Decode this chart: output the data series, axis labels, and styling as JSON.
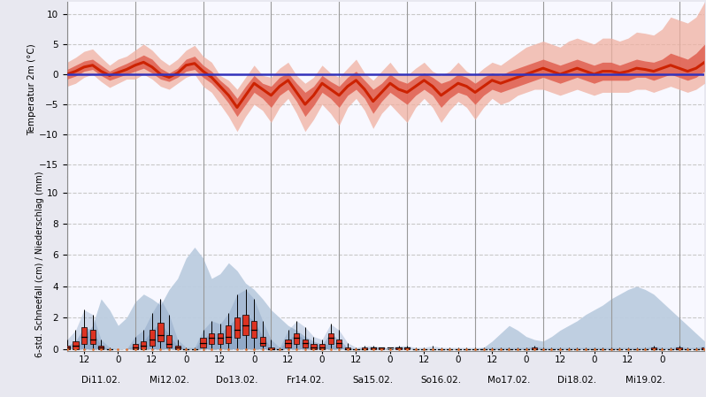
{
  "temp_ylabel": "Temperatur 2m (°C)",
  "precip_ylabel": "6-std. Schneefall (cm) / Niederschlag (mm)",
  "temp_ylim": [
    -17,
    12
  ],
  "temp_yticks": [
    -15,
    -10,
    -5,
    0,
    5,
    10
  ],
  "precip_ylim": [
    -0.15,
    11
  ],
  "precip_yticks": [
    0,
    2,
    4,
    6,
    8,
    10
  ],
  "background_color": "#e8e8f0",
  "plot_bg_color": "#f8f8ff",
  "n_steps": 76,
  "x_day_labels": [
    "Di11.02.",
    "Mi12.02.",
    "Do13.02.",
    "Fr14.02.",
    "Sa15.02.",
    "So16.02.",
    "Mo17.02.",
    "Di18.02.",
    "Mi19.02."
  ],
  "x_day_positions": [
    4,
    12,
    20,
    28,
    36,
    44,
    52,
    60,
    68
  ],
  "x_hour_labels": [
    "12",
    "0",
    "12",
    "0",
    "12",
    "0",
    "12",
    "0",
    "12",
    "0",
    "12",
    "0",
    "12",
    "0",
    "12",
    "0",
    "12",
    "0"
  ],
  "x_hour_positions": [
    2,
    6,
    10,
    14,
    18,
    22,
    26,
    30,
    34,
    38,
    42,
    46,
    50,
    54,
    58,
    62,
    66,
    70
  ],
  "x_day_line_positions": [
    0,
    8,
    16,
    24,
    32,
    40,
    48,
    56,
    64,
    72
  ],
  "temp_median": [
    0.0,
    0.5,
    1.2,
    1.5,
    0.5,
    -0.2,
    0.3,
    0.8,
    1.5,
    2.0,
    1.2,
    0.0,
    -0.5,
    0.2,
    1.5,
    1.8,
    0.5,
    -0.5,
    -2.0,
    -3.5,
    -5.5,
    -3.5,
    -1.5,
    -2.5,
    -3.5,
    -2.0,
    -1.0,
    -3.0,
    -5.0,
    -3.5,
    -1.5,
    -2.5,
    -3.5,
    -2.0,
    -1.0,
    -2.5,
    -4.5,
    -3.0,
    -1.5,
    -2.5,
    -3.0,
    -2.0,
    -1.0,
    -2.0,
    -3.5,
    -2.5,
    -1.5,
    -2.0,
    -3.0,
    -2.0,
    -1.0,
    -1.5,
    -1.0,
    -0.5,
    0.0,
    0.5,
    1.0,
    0.5,
    0.0,
    0.5,
    1.0,
    0.5,
    0.0,
    0.5,
    0.5,
    0.2,
    0.5,
    1.0,
    0.8,
    0.5,
    1.0,
    1.5,
    1.0,
    0.5,
    1.0,
    2.0
  ],
  "temp_q25": [
    -0.8,
    -0.3,
    0.5,
    0.8,
    -0.2,
    -1.0,
    -0.5,
    0.0,
    0.5,
    1.0,
    0.2,
    -0.8,
    -1.2,
    -0.5,
    0.5,
    0.8,
    -0.5,
    -1.5,
    -3.0,
    -4.8,
    -7.0,
    -5.0,
    -3.0,
    -4.0,
    -5.5,
    -3.5,
    -2.5,
    -4.5,
    -7.0,
    -5.2,
    -3.0,
    -4.0,
    -5.5,
    -3.5,
    -2.5,
    -4.0,
    -6.5,
    -4.5,
    -3.0,
    -4.0,
    -5.0,
    -3.5,
    -2.5,
    -3.5,
    -5.5,
    -4.0,
    -3.0,
    -3.5,
    -5.0,
    -3.5,
    -2.5,
    -3.0,
    -2.5,
    -2.0,
    -1.5,
    -1.0,
    -0.5,
    -1.0,
    -1.5,
    -1.0,
    -0.5,
    -1.0,
    -1.5,
    -1.0,
    -1.0,
    -1.0,
    -1.0,
    -0.5,
    -0.5,
    -1.0,
    -0.5,
    0.0,
    -0.5,
    -1.0,
    -0.5,
    0.5
  ],
  "temp_q75": [
    0.8,
    1.5,
    2.2,
    2.5,
    1.5,
    0.5,
    1.2,
    1.8,
    2.5,
    3.2,
    2.5,
    1.0,
    0.2,
    1.0,
    2.5,
    3.0,
    1.5,
    0.5,
    -1.0,
    -2.2,
    -4.0,
    -2.0,
    -0.2,
    -1.5,
    -2.0,
    -0.5,
    0.2,
    -1.5,
    -3.0,
    -2.0,
    -0.2,
    -1.2,
    -2.0,
    -0.5,
    0.5,
    -1.0,
    -2.5,
    -1.5,
    0.0,
    -1.0,
    -1.5,
    -0.5,
    0.2,
    -0.5,
    -1.5,
    -1.0,
    0.0,
    -0.5,
    -1.5,
    -0.5,
    0.2,
    -0.2,
    0.5,
    1.0,
    1.5,
    2.0,
    2.5,
    2.0,
    1.5,
    2.0,
    2.5,
    2.0,
    1.5,
    2.0,
    2.0,
    1.5,
    2.0,
    2.5,
    2.2,
    2.0,
    2.5,
    3.5,
    3.0,
    2.5,
    3.5,
    5.0
  ],
  "temp_q10": [
    -2.0,
    -1.5,
    -0.5,
    0.0,
    -1.2,
    -2.2,
    -1.5,
    -0.8,
    -0.8,
    0.0,
    -0.8,
    -2.0,
    -2.5,
    -1.5,
    -0.5,
    0.0,
    -2.0,
    -3.0,
    -5.0,
    -7.0,
    -9.5,
    -7.0,
    -5.0,
    -6.0,
    -8.0,
    -5.5,
    -4.0,
    -6.5,
    -9.5,
    -7.5,
    -5.0,
    -6.5,
    -8.5,
    -5.5,
    -4.0,
    -6.0,
    -9.0,
    -6.5,
    -5.0,
    -6.5,
    -8.0,
    -5.5,
    -4.0,
    -5.5,
    -8.0,
    -6.0,
    -4.5,
    -5.5,
    -7.5,
    -5.5,
    -4.0,
    -5.0,
    -4.5,
    -3.5,
    -3.0,
    -2.5,
    -2.5,
    -3.0,
    -3.5,
    -3.0,
    -2.5,
    -3.0,
    -3.5,
    -3.0,
    -3.0,
    -3.0,
    -3.0,
    -2.5,
    -2.5,
    -3.0,
    -2.5,
    -2.0,
    -2.5,
    -3.0,
    -2.5,
    -1.5
  ],
  "temp_q90": [
    2.0,
    2.8,
    3.8,
    4.2,
    2.8,
    1.5,
    2.5,
    3.0,
    4.0,
    5.0,
    4.0,
    2.5,
    1.5,
    2.5,
    4.0,
    4.8,
    3.0,
    2.0,
    -0.2,
    -1.0,
    -2.5,
    -0.5,
    1.5,
    -0.2,
    -0.5,
    1.0,
    2.0,
    -0.2,
    -1.5,
    -0.5,
    1.5,
    0.2,
    -0.5,
    1.0,
    2.5,
    0.2,
    -1.0,
    0.5,
    2.0,
    0.2,
    -0.2,
    1.0,
    2.0,
    0.5,
    -0.2,
    0.5,
    2.0,
    0.5,
    -0.2,
    1.0,
    2.0,
    1.5,
    2.5,
    3.5,
    4.5,
    5.0,
    5.5,
    5.0,
    4.5,
    5.5,
    6.0,
    5.5,
    5.0,
    6.0,
    6.0,
    5.5,
    6.0,
    7.0,
    6.8,
    6.5,
    7.5,
    9.5,
    9.0,
    8.5,
    9.5,
    12.0
  ],
  "precip_median": [
    0.1,
    0.2,
    0.8,
    0.6,
    0.1,
    0.0,
    0.0,
    0.0,
    0.1,
    0.2,
    0.6,
    0.9,
    0.3,
    0.1,
    0.0,
    0.0,
    0.4,
    0.7,
    0.7,
    0.8,
    1.2,
    1.5,
    1.2,
    0.4,
    0.0,
    0.0,
    0.4,
    0.7,
    0.4,
    0.1,
    0.1,
    0.7,
    0.4,
    0.0,
    0.0,
    0.0,
    0.1,
    0.1,
    0.1,
    0.1,
    0.1,
    0.0,
    0.0,
    0.0,
    0.0,
    0.0,
    0.0,
    0.0,
    0.0,
    0.0,
    0.0,
    0.0,
    0.0,
    0.0,
    0.0,
    0.0,
    0.0,
    0.0,
    0.0,
    0.0,
    0.0,
    0.0,
    0.0,
    0.0,
    0.0,
    0.0,
    0.0,
    0.0,
    0.0,
    0.0,
    0.0,
    0.0,
    0.0,
    0.0,
    0.0,
    0.0
  ],
  "precip_q25": [
    0.0,
    0.0,
    0.3,
    0.3,
    0.0,
    0.0,
    0.0,
    0.0,
    0.0,
    0.0,
    0.2,
    0.5,
    0.1,
    0.0,
    0.0,
    0.0,
    0.1,
    0.3,
    0.3,
    0.4,
    0.7,
    0.9,
    0.7,
    0.2,
    0.0,
    0.0,
    0.1,
    0.3,
    0.1,
    0.0,
    0.0,
    0.3,
    0.1,
    0.0,
    0.0,
    0.0,
    0.0,
    0.0,
    0.0,
    0.0,
    0.0,
    0.0,
    0.0,
    0.0,
    0.0,
    0.0,
    0.0,
    0.0,
    0.0,
    0.0,
    0.0,
    0.0,
    0.0,
    0.0,
    0.0,
    0.0,
    0.0,
    0.0,
    0.0,
    0.0,
    0.0,
    0.0,
    0.0,
    0.0,
    0.0,
    0.0,
    0.0,
    0.0,
    0.0,
    0.0,
    0.0,
    0.0,
    0.0,
    0.0,
    0.0,
    0.0
  ],
  "precip_q75": [
    0.2,
    0.5,
    1.4,
    1.2,
    0.2,
    0.0,
    0.0,
    0.0,
    0.3,
    0.5,
    1.2,
    1.7,
    0.9,
    0.2,
    0.0,
    0.0,
    0.7,
    1.0,
    1.0,
    1.5,
    2.0,
    2.2,
    1.8,
    0.8,
    0.1,
    0.0,
    0.6,
    1.0,
    0.6,
    0.3,
    0.3,
    1.0,
    0.6,
    0.1,
    0.0,
    0.1,
    0.1,
    0.1,
    0.0,
    0.1,
    0.1,
    0.0,
    0.0,
    0.0,
    0.0,
    0.0,
    0.0,
    0.0,
    0.0,
    0.0,
    0.0,
    0.0,
    0.0,
    0.0,
    0.0,
    0.1,
    0.0,
    0.0,
    0.0,
    0.0,
    0.0,
    0.0,
    0.0,
    0.0,
    0.0,
    0.0,
    0.0,
    0.0,
    0.0,
    0.1,
    0.0,
    0.0,
    0.1,
    0.0,
    0.0,
    0.1
  ],
  "precip_q90": [
    0.6,
    1.2,
    2.5,
    2.2,
    0.6,
    0.1,
    0.0,
    0.0,
    0.8,
    1.2,
    2.3,
    3.2,
    2.2,
    0.6,
    0.1,
    0.1,
    1.2,
    1.8,
    1.6,
    2.3,
    3.5,
    3.8,
    3.2,
    1.8,
    0.6,
    0.1,
    1.2,
    1.8,
    1.4,
    0.8,
    0.6,
    1.6,
    1.2,
    0.4,
    0.1,
    0.2,
    0.2,
    0.1,
    0.1,
    0.2,
    0.2,
    0.1,
    0.1,
    0.2,
    0.1,
    0.1,
    0.1,
    0.1,
    0.1,
    0.1,
    0.1,
    0.1,
    0.1,
    0.1,
    0.1,
    0.2,
    0.1,
    0.1,
    0.1,
    0.1,
    0.1,
    0.1,
    0.1,
    0.1,
    0.1,
    0.1,
    0.1,
    0.1,
    0.1,
    0.2,
    0.1,
    0.1,
    0.2,
    0.1,
    0.1,
    0.2
  ],
  "snow_upper": [
    0.0,
    0.0,
    0.8,
    1.5,
    3.2,
    2.5,
    1.5,
    2.0,
    3.0,
    3.5,
    3.2,
    2.8,
    3.8,
    4.5,
    5.8,
    6.5,
    5.8,
    4.5,
    4.8,
    5.5,
    5.0,
    4.2,
    3.8,
    3.2,
    2.5,
    2.0,
    1.5,
    1.2,
    0.8,
    0.5,
    0.3,
    0.3,
    0.2,
    0.1,
    0.0,
    0.0,
    0.0,
    0.0,
    0.0,
    0.0,
    0.0,
    0.0,
    0.0,
    0.0,
    0.0,
    0.0,
    0.0,
    0.0,
    0.0,
    0.1,
    0.5,
    1.0,
    1.5,
    1.2,
    0.8,
    0.6,
    0.5,
    0.8,
    1.2,
    1.5,
    1.8,
    2.2,
    2.5,
    2.8,
    3.2,
    3.5,
    3.8,
    4.0,
    3.8,
    3.5,
    3.0,
    2.5,
    2.0,
    1.5,
    1.0,
    0.5
  ],
  "snow_lower": [
    0.0,
    0.0,
    0.0,
    0.0,
    0.0,
    0.0,
    0.0,
    0.0,
    0.0,
    0.0,
    0.0,
    0.0,
    0.0,
    0.0,
    0.0,
    0.0,
    0.0,
    0.0,
    0.0,
    0.0,
    0.0,
    0.0,
    0.0,
    0.0,
    0.0,
    0.0,
    0.0,
    0.0,
    0.0,
    0.0,
    0.0,
    0.0,
    0.0,
    0.0,
    0.0,
    0.0,
    0.0,
    0.0,
    0.0,
    0.0,
    0.0,
    0.0,
    0.0,
    0.0,
    0.0,
    0.0,
    0.0,
    0.0,
    0.0,
    0.0,
    0.0,
    0.0,
    0.0,
    0.0,
    0.0,
    0.0,
    0.0,
    0.0,
    0.0,
    0.0,
    0.0,
    0.0,
    0.0,
    0.0,
    0.0,
    0.0,
    0.0,
    0.0,
    0.0,
    0.0,
    0.0,
    0.0,
    0.0,
    0.0,
    0.0,
    0.0
  ],
  "color_temp_dark": "#cc2200",
  "color_temp_mid": "#e06050",
  "color_temp_light": "#f0b0a0",
  "color_blue_line": "#3333bb",
  "color_snow_dark": "#7090b8",
  "color_snow_light": "#bccde0",
  "color_precip_orange": "#e07030",
  "color_box_fill": "#dd3322",
  "color_box_edge": "#000000",
  "grid_color": "#c8c8c8",
  "vline_color": "#999999"
}
